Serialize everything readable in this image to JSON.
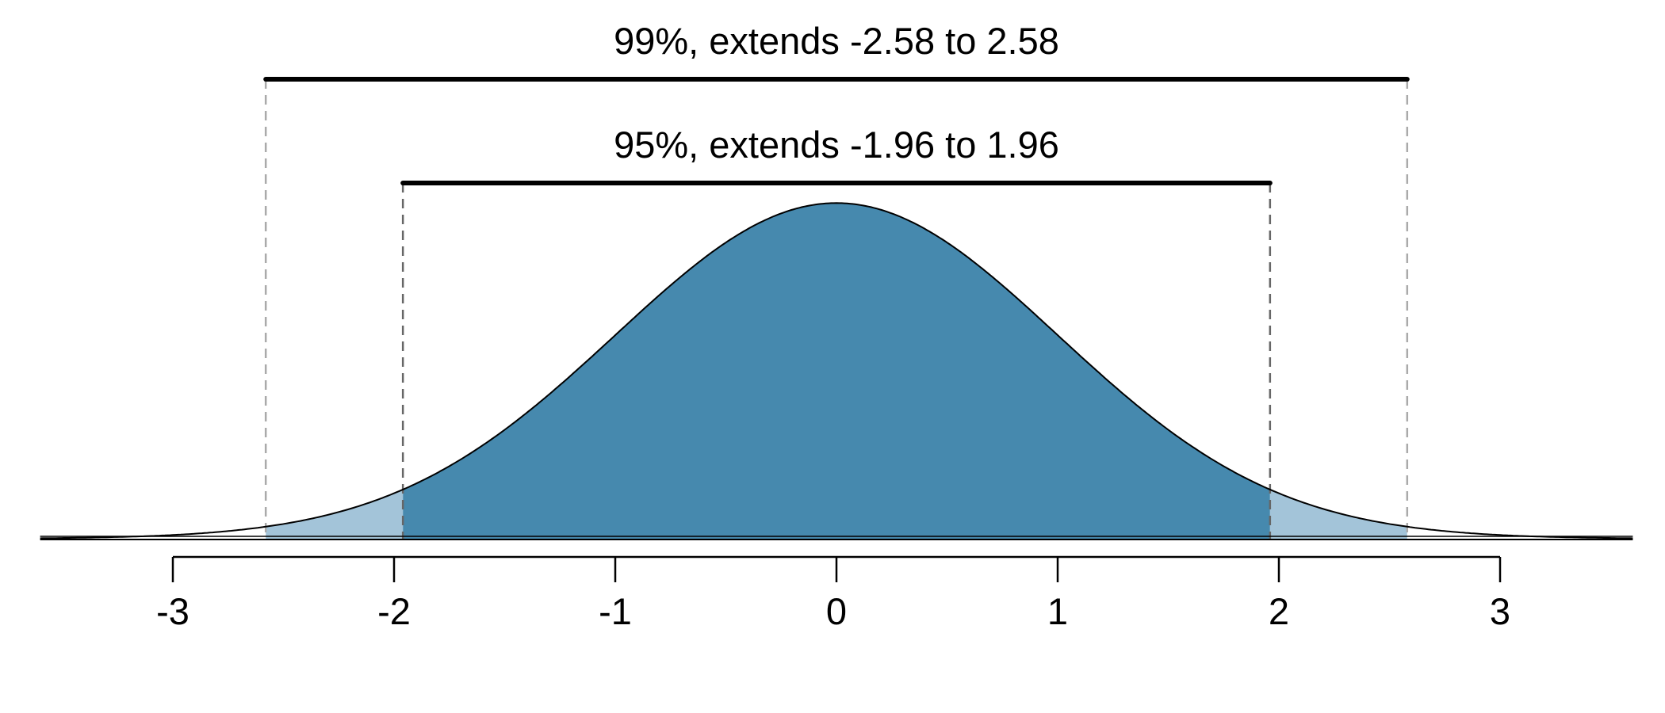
{
  "chart_data": {
    "type": "area",
    "xlim": [
      -3.6,
      3.6
    ],
    "ylim": [
      0,
      0.4
    ],
    "ticks": [
      {
        "value": -3,
        "label": "-3"
      },
      {
        "value": -2,
        "label": "-2"
      },
      {
        "value": -1,
        "label": "-1"
      },
      {
        "value": 0,
        "label": "0"
      },
      {
        "value": 1,
        "label": "1"
      },
      {
        "value": 2,
        "label": "2"
      },
      {
        "value": 3,
        "label": "3"
      }
    ],
    "intervals": [
      {
        "name": "99%",
        "lower": -2.58,
        "upper": 2.58,
        "label": "99%, extends -2.58 to 2.58",
        "fill": "#a3c4d9",
        "guide_color": "#aaaaaa"
      },
      {
        "name": "95%",
        "lower": -1.96,
        "upper": 1.96,
        "label": "95%, extends -1.96 to 1.96",
        "fill": "#4689ae",
        "guide_color": "#666666"
      }
    ],
    "curve_color": "#000000",
    "grid": false,
    "legend": "none"
  }
}
